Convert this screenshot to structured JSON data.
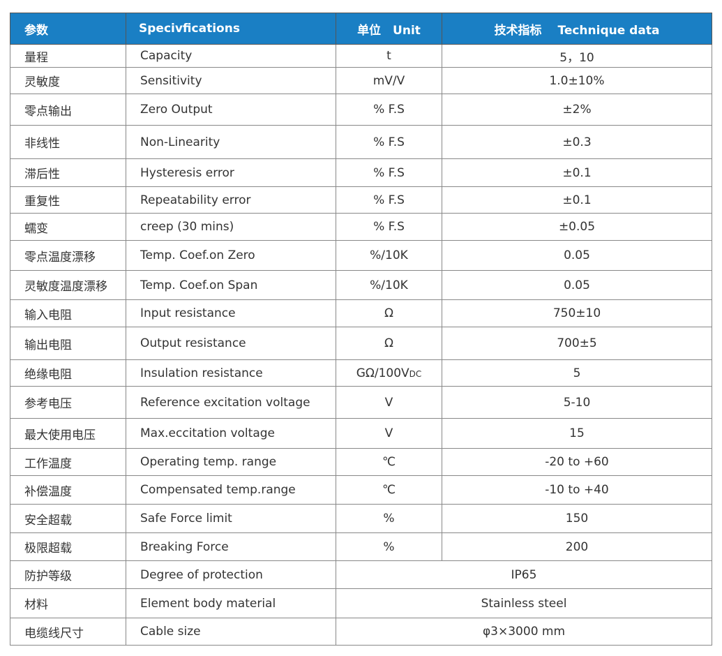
{
  "header": {
    "param": "参数",
    "spec": "Specivfications",
    "unit": "单位　Unit",
    "data": "技术指标　 Technique data"
  },
  "colors": {
    "header_bg": "#1a7fc4"
  },
  "rows": [
    {
      "cn": "量程",
      "en": "Capacity",
      "unit": "t",
      "value": "5，10"
    },
    {
      "cn": "灵敏度",
      "en": "Sensitivity",
      "unit": "mV/V",
      "value": "1.0±10%"
    },
    {
      "cn": "零点输出",
      "en": "Zero Output",
      "unit": "% F.S",
      "value": "±2%"
    },
    {
      "cn": "非线性",
      "en": "Non-Linearity",
      "unit": "% F.S",
      "value": "±0.3"
    },
    {
      "cn": "滞后性",
      "en": "Hysteresis error",
      "unit": "% F.S",
      "value": "±0.1"
    },
    {
      "cn": "重复性",
      "en": "Repeatability error",
      "unit": "% F.S",
      "value": "±0.1"
    },
    {
      "cn": "蠕变",
      "en": "creep (30 mins)",
      "unit": "% F.S",
      "value": "±0.05"
    },
    {
      "cn": "零点温度漂移",
      "en": "Temp. Coef.on Zero",
      "unit": "%/10K",
      "value": "0.05"
    },
    {
      "cn": "灵敏度温度漂移",
      "en": "Temp. Coef.on Span",
      "unit": "%/10K",
      "value": "0.05"
    },
    {
      "cn": "输入电阻",
      "en": "Input resistance",
      "unit": "Ω",
      "value": "750±10"
    },
    {
      "cn": "输出电阻",
      "en": "Output resistance",
      "unit": "Ω",
      "value": "700±5"
    },
    {
      "cn": "绝缘电阻",
      "en": "Insulation resistance",
      "unit": "GΩ/100V",
      "unit_sub": "DC",
      "value": "5"
    },
    {
      "cn": "参考电压",
      "en": "Reference excitation voltage",
      "unit": "V",
      "value": "5-10"
    },
    {
      "cn": "最大使用电压",
      "en": "Max.eccitation voltage",
      "unit": "V",
      "value": "15"
    },
    {
      "cn": "工作温度",
      "en": "Operating temp. range",
      "unit": "℃",
      "value": "-20 to +60"
    },
    {
      "cn": "补偿温度",
      "en": "Compensated temp.range",
      "unit": "℃",
      "value": "-10 to +40"
    },
    {
      "cn": "安全超载",
      "en": "Safe Force limit",
      "unit": "%",
      "value": "150"
    },
    {
      "cn": "极限超载",
      "en": "Breaking Force",
      "unit": "%",
      "value": "200"
    },
    {
      "cn": "防护等级",
      "en": "Degree of protection",
      "merged": "IP65"
    },
    {
      "cn": "材料",
      "en": "Element body material",
      "merged": "Stainless steel"
    },
    {
      "cn": "电缆线尺寸",
      "en": "Cable size",
      "merged": "φ3×3000 mm"
    }
  ]
}
